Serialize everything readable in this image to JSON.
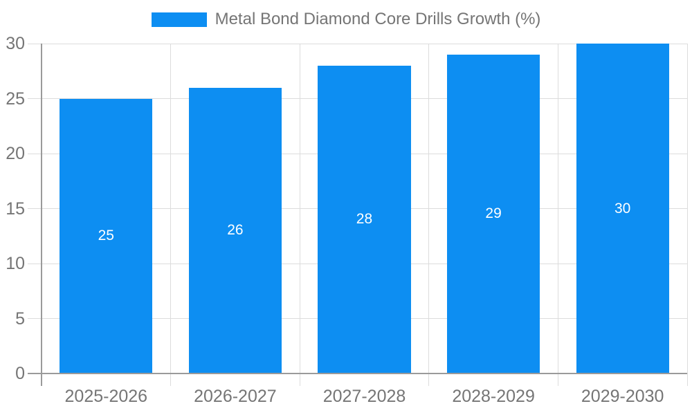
{
  "chart_data": {
    "type": "bar",
    "title": "Metal Bond Diamond Core Drills Growth (%)",
    "categories": [
      "2025-2026",
      "2026-2027",
      "2027-2028",
      "2028-2029",
      "2029-2030"
    ],
    "values": [
      25,
      26,
      28,
      29,
      30
    ],
    "xlabel": "",
    "ylabel": "",
    "ylim": [
      0,
      30
    ],
    "yticks": [
      0,
      5,
      10,
      15,
      20,
      25,
      30
    ],
    "grid": "on",
    "legend_position": "top-center",
    "value_labels": "inside-center",
    "colors": {
      "bar": "#0D8EF2",
      "grid": "#DCDCDC",
      "axis": "#9A9A9A",
      "tick_text": "#757575",
      "value_text": "#FFFFFF",
      "background": "#FFFFFF"
    }
  }
}
